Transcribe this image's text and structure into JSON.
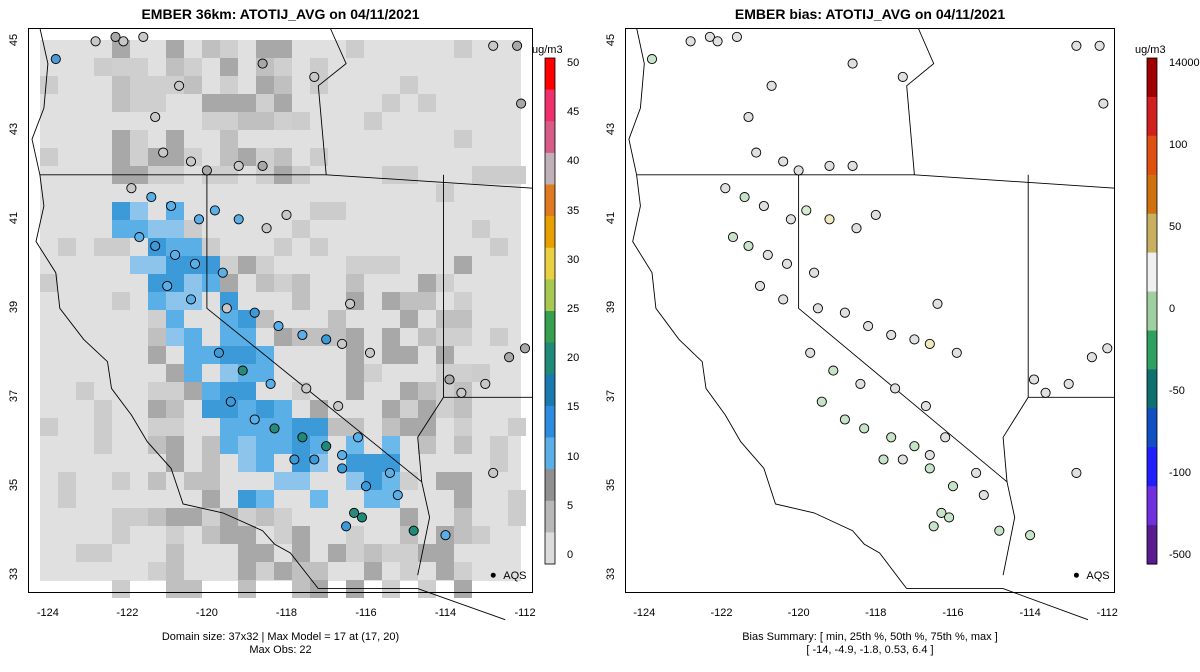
{
  "left_panel": {
    "title": "EMBER 36km: ATOTIJ_AVG on 04/11/2021",
    "summary_line1": "Domain size: 37x32 | Max Model = 17 at (17, 20)",
    "summary_line2": "Max Obs: 22",
    "colorbar": {
      "unit": "ug/m3",
      "labels": [
        "50",
        "45",
        "40",
        "35",
        "30",
        "25",
        "20",
        "15",
        "10",
        "5",
        "0"
      ],
      "colors": [
        "#ff0000",
        "#f0306a",
        "#d85c88",
        "#c0b0b8",
        "#e07a20",
        "#e7a000",
        "#e8d040",
        "#a8c850",
        "#34a050",
        "#1f8a78",
        "#1a7ab0",
        "#2e8ce0",
        "#5aafe6",
        "#909090",
        "#b8b8b8",
        "#dcdcdc"
      ]
    },
    "aqs_label": "AQS"
  },
  "right_panel": {
    "title": "EMBER bias: ATOTIJ_AVG on 04/11/2021",
    "summary_line1": "Bias Summary: [ min, 25th %, 50th %, 75th %, max ]",
    "summary_line2": "[ -14,   -4.9,   -1.8,   0.53,   6.4 ]",
    "colorbar": {
      "unit": "ug/m3",
      "labels": [
        "14000",
        "100",
        "50",
        "0",
        "-50",
        "-100",
        "-500"
      ],
      "colors": [
        "#a00000",
        "#d02020",
        "#e05010",
        "#d07010",
        "#c8b060",
        "#f0f0f0",
        "#a0d0a0",
        "#30a060",
        "#107070",
        "#1050c0",
        "#2020ff",
        "#7030e0",
        "#5a1a90"
      ]
    },
    "aqs_label": "AQS"
  },
  "axes": {
    "x_ticks": [
      "-124",
      "-122",
      "-120",
      "-118",
      "-116",
      "-114",
      "-112"
    ],
    "y_ticks": [
      "33",
      "35",
      "37",
      "39",
      "41",
      "43",
      "45"
    ]
  },
  "map": {
    "lon_range": [
      -124.5,
      -111.8
    ],
    "lat_range": [
      32.6,
      45.3
    ]
  }
}
